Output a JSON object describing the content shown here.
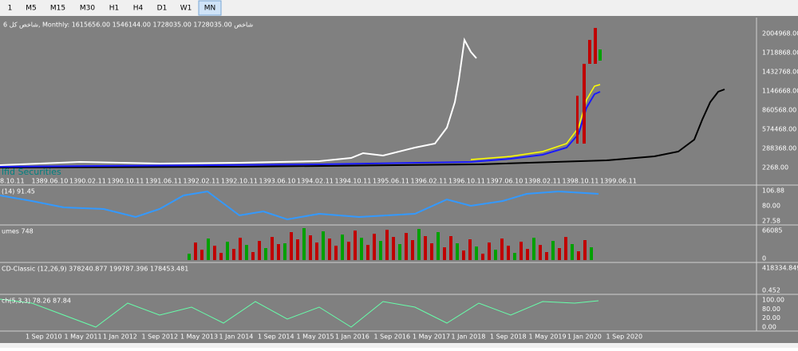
{
  "toolbar": {
    "buttons": [
      "1",
      "M5",
      "M15",
      "M30",
      "H1",
      "H4",
      "D1",
      "W1",
      "MN"
    ],
    "active": "MN"
  },
  "main": {
    "info": "شاخص کل 6, Monthly:  1615656.00 1546144.00 1728035.00 1728035.00  شاخص",
    "watermark": "lfid Securities",
    "price_labels": [
      "2004968.00",
      "1718868.00",
      "1432768.00",
      "1146668.00",
      "860568.00",
      "574468.00",
      "288368.00",
      "2268.00"
    ],
    "dates": [
      "8.10.11",
      "1389.06.10",
      "1390.02.11",
      "1390.10.11",
      "1391.06.11",
      "1392.02.11",
      "1392.10.11",
      "1393.06.10",
      "1394.02.11",
      "1394.10.11",
      "1395.06.11",
      "1396.02.11",
      "1396.10.11",
      "1397.06.10",
      "1398.02.11",
      "1398.10.11",
      "1399.06.11"
    ]
  },
  "panels": [
    {
      "label": "(14) 91.45",
      "axis": [
        "106.88",
        "80.00",
        "27.58"
      ]
    },
    {
      "label": "umes 748",
      "axis": [
        "66085",
        "0"
      ]
    },
    {
      "label": "CD-Classic (12,26,9) 378240.877 199787.396 178453.481",
      "axis": [
        "418334.849",
        "0.452"
      ]
    },
    {
      "label": "ch(5,3,3) 78.26 87.84",
      "axis": [
        "100.00",
        "80.00",
        "20.00",
        "0.00"
      ]
    }
  ],
  "time_axis": [
    "1 Sep 2010",
    "1 May 2011",
    "1 Jan 2012",
    "1 Sep 2012",
    "1 May 2013",
    "1 Jan 2014",
    "1 Sep 2014",
    "1 May 2015",
    "1 Jan 2016",
    "1 Sep 2016",
    "1 May 2017",
    "1 Jan 2018",
    "1 Sep 2018",
    "1 May 2019",
    "1 Jan 2020",
    "1 Sep 2020"
  ]
}
